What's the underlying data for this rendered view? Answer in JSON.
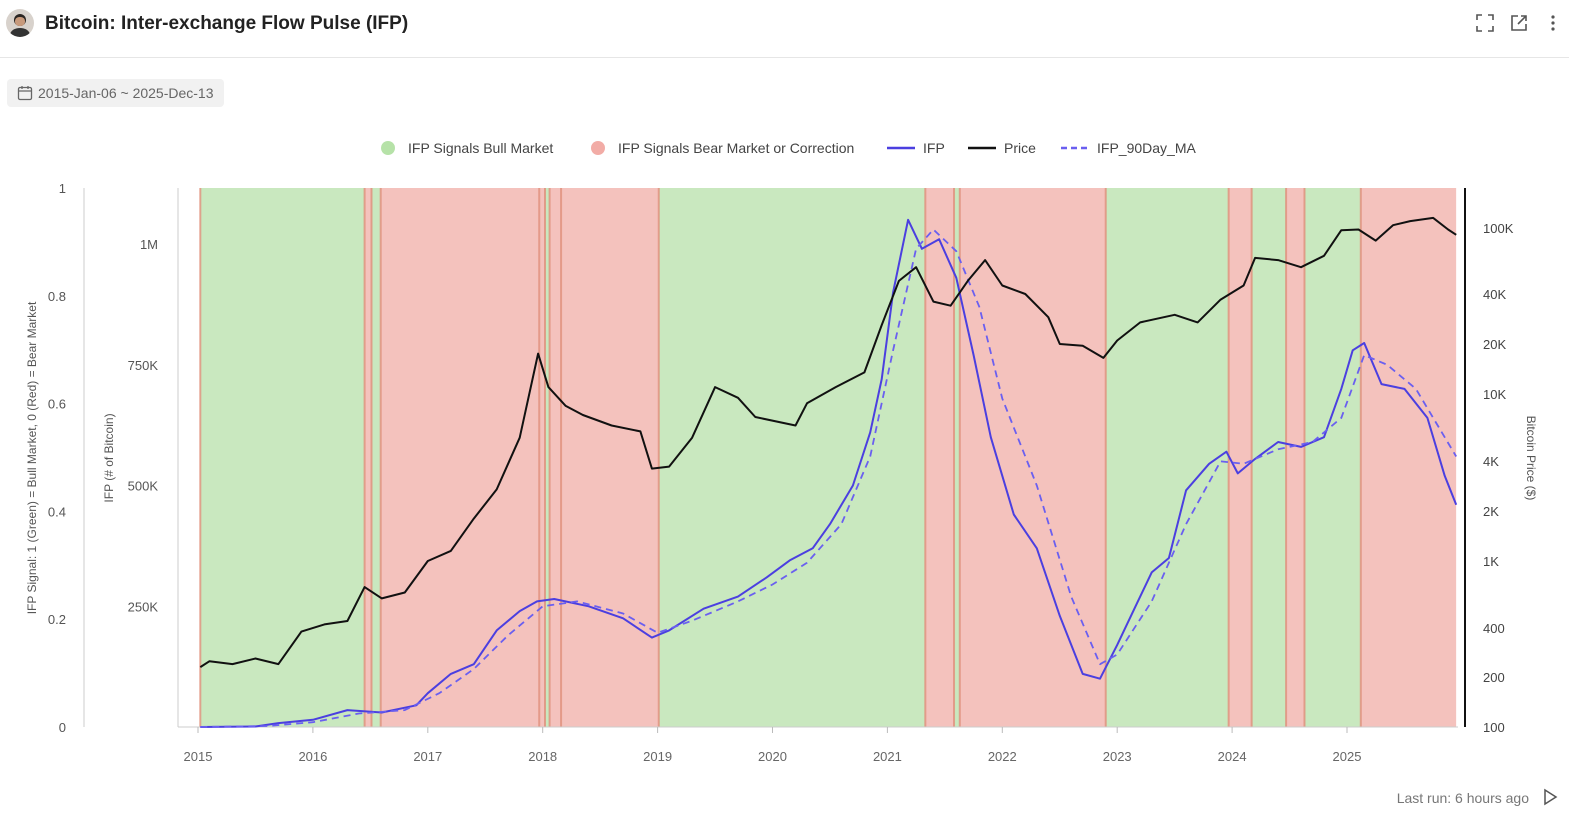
{
  "header": {
    "title": "Bitcoin: Inter-exchange Flow Pulse (IFP)",
    "icons": [
      "expand-icon",
      "open-external-icon",
      "more-vertical-icon"
    ]
  },
  "filters": {
    "date_range": "2015-Jan-06 ~ 2025-Dec-13"
  },
  "footer": {
    "last_run": "Last run: 6 hours ago"
  },
  "colors": {
    "bull": "#c9e8bf",
    "bear": "#f4c2bd",
    "edge": "#e08f7b",
    "ifp": "#4b3fe0",
    "price": "#111111",
    "ma": "#6a5ff0"
  },
  "chart_data": {
    "type": "line",
    "legend": [
      {
        "name": "IFP Signals Bull Market",
        "kind": "dot",
        "color": "#b6e2a8"
      },
      {
        "name": "IFP Signals Bear Market or Correction",
        "kind": "dot",
        "color": "#f2aca6"
      },
      {
        "name": "IFP",
        "kind": "line",
        "color": "#4b3fe0"
      },
      {
        "name": "Price",
        "kind": "line",
        "color": "#111111"
      },
      {
        "name": "IFP_90Day_MA",
        "kind": "dash",
        "color": "#6a5ff0"
      }
    ],
    "x_axis": {
      "ticks": [
        "2015",
        "2016",
        "2017",
        "2018",
        "2019",
        "2020",
        "2021",
        "2022",
        "2023",
        "2024",
        "2025"
      ],
      "range": [
        2015.0,
        2025.95
      ]
    },
    "signal_axis": {
      "label": "IFP Signal: 1 (Green) = Bull Market, 0 (Red) = Bear Market",
      "ticks": [
        "0",
        "0.2",
        "0.4",
        "0.6",
        "0.8",
        "1"
      ],
      "range": [
        0,
        1
      ]
    },
    "ifp_axis": {
      "label": "IFP (# of Bitcoin)",
      "ticks": [
        "250K",
        "500K",
        "750K",
        "1M"
      ],
      "tick_values": [
        250000,
        500000,
        750000,
        1000000
      ],
      "range": [
        0,
        1120000
      ]
    },
    "price_axis": {
      "label": "Bitcoin Price ($)",
      "scale": "log",
      "ticks": [
        "100",
        "200",
        "400",
        "1K",
        "2K",
        "4K",
        "10K",
        "20K",
        "40K",
        "100K"
      ],
      "tick_values": [
        100,
        200,
        400,
        1000,
        2000,
        4000,
        10000,
        20000,
        40000,
        100000
      ],
      "range": [
        100,
        160000
      ]
    },
    "regimes": [
      {
        "start": 2015.02,
        "end": 2016.45,
        "signal": 1
      },
      {
        "start": 2016.45,
        "end": 2016.51,
        "signal": 0
      },
      {
        "start": 2016.51,
        "end": 2016.59,
        "signal": 1
      },
      {
        "start": 2016.59,
        "end": 2017.97,
        "signal": 0
      },
      {
        "start": 2017.97,
        "end": 2018.02,
        "signal": 0
      },
      {
        "start": 2018.02,
        "end": 2018.06,
        "signal": 1
      },
      {
        "start": 2018.06,
        "end": 2018.16,
        "signal": 0
      },
      {
        "start": 2018.16,
        "end": 2019.01,
        "signal": 0
      },
      {
        "start": 2019.01,
        "end": 2021.33,
        "signal": 1
      },
      {
        "start": 2021.33,
        "end": 2021.58,
        "signal": 0
      },
      {
        "start": 2021.58,
        "end": 2021.63,
        "signal": 1
      },
      {
        "start": 2021.63,
        "end": 2022.9,
        "signal": 0
      },
      {
        "start": 2022.9,
        "end": 2023.97,
        "signal": 1
      },
      {
        "start": 2023.97,
        "end": 2024.17,
        "signal": 0
      },
      {
        "start": 2024.17,
        "end": 2024.47,
        "signal": 1
      },
      {
        "start": 2024.47,
        "end": 2024.63,
        "signal": 0
      },
      {
        "start": 2024.63,
        "end": 2025.12,
        "signal": 1
      },
      {
        "start": 2025.12,
        "end": 2025.95,
        "signal": 0
      }
    ],
    "series": [
      {
        "name": "IFP",
        "axis": "ifp",
        "points": [
          [
            2015.02,
            0
          ],
          [
            2015.5,
            1000
          ],
          [
            2015.7,
            8000
          ],
          [
            2016.0,
            15000
          ],
          [
            2016.3,
            35000
          ],
          [
            2016.6,
            30000
          ],
          [
            2016.9,
            45000
          ],
          [
            2017.0,
            70000
          ],
          [
            2017.2,
            110000
          ],
          [
            2017.4,
            130000
          ],
          [
            2017.6,
            200000
          ],
          [
            2017.8,
            240000
          ],
          [
            2017.95,
            260000
          ],
          [
            2018.1,
            265000
          ],
          [
            2018.4,
            250000
          ],
          [
            2018.7,
            225000
          ],
          [
            2018.95,
            185000
          ],
          [
            2019.1,
            200000
          ],
          [
            2019.4,
            245000
          ],
          [
            2019.7,
            270000
          ],
          [
            2019.95,
            310000
          ],
          [
            2020.15,
            345000
          ],
          [
            2020.35,
            370000
          ],
          [
            2020.5,
            420000
          ],
          [
            2020.7,
            500000
          ],
          [
            2020.85,
            610000
          ],
          [
            2020.95,
            720000
          ],
          [
            2021.05,
            900000
          ],
          [
            2021.18,
            1050000
          ],
          [
            2021.3,
            990000
          ],
          [
            2021.45,
            1010000
          ],
          [
            2021.6,
            930000
          ],
          [
            2021.75,
            770000
          ],
          [
            2021.9,
            600000
          ],
          [
            2022.1,
            440000
          ],
          [
            2022.3,
            370000
          ],
          [
            2022.5,
            230000
          ],
          [
            2022.7,
            110000
          ],
          [
            2022.85,
            100000
          ],
          [
            2023.0,
            170000
          ],
          [
            2023.15,
            245000
          ],
          [
            2023.3,
            320000
          ],
          [
            2023.45,
            350000
          ],
          [
            2023.6,
            490000
          ],
          [
            2023.8,
            545000
          ],
          [
            2023.95,
            570000
          ],
          [
            2024.05,
            525000
          ],
          [
            2024.2,
            555000
          ],
          [
            2024.4,
            590000
          ],
          [
            2024.6,
            580000
          ],
          [
            2024.8,
            600000
          ],
          [
            2024.95,
            700000
          ],
          [
            2025.05,
            780000
          ],
          [
            2025.15,
            795000
          ],
          [
            2025.3,
            710000
          ],
          [
            2025.5,
            700000
          ],
          [
            2025.7,
            640000
          ],
          [
            2025.85,
            520000
          ],
          [
            2025.95,
            460000
          ]
        ]
      },
      {
        "name": "IFP_90Day_MA",
        "axis": "ifp",
        "points": [
          [
            2015.02,
            0
          ],
          [
            2015.6,
            2000
          ],
          [
            2016.0,
            10000
          ],
          [
            2016.4,
            28000
          ],
          [
            2016.8,
            35000
          ],
          [
            2017.1,
            70000
          ],
          [
            2017.4,
            120000
          ],
          [
            2017.7,
            190000
          ],
          [
            2018.0,
            250000
          ],
          [
            2018.3,
            260000
          ],
          [
            2018.7,
            235000
          ],
          [
            2019.0,
            195000
          ],
          [
            2019.3,
            220000
          ],
          [
            2019.7,
            260000
          ],
          [
            2020.0,
            295000
          ],
          [
            2020.3,
            340000
          ],
          [
            2020.6,
            420000
          ],
          [
            2020.85,
            560000
          ],
          [
            2021.05,
            780000
          ],
          [
            2021.25,
            990000
          ],
          [
            2021.4,
            1030000
          ],
          [
            2021.6,
            985000
          ],
          [
            2021.8,
            870000
          ],
          [
            2022.0,
            680000
          ],
          [
            2022.3,
            500000
          ],
          [
            2022.6,
            270000
          ],
          [
            2022.85,
            130000
          ],
          [
            2023.0,
            150000
          ],
          [
            2023.3,
            260000
          ],
          [
            2023.6,
            420000
          ],
          [
            2023.9,
            550000
          ],
          [
            2024.1,
            545000
          ],
          [
            2024.4,
            575000
          ],
          [
            2024.7,
            590000
          ],
          [
            2024.95,
            640000
          ],
          [
            2025.15,
            770000
          ],
          [
            2025.35,
            750000
          ],
          [
            2025.6,
            700000
          ],
          [
            2025.8,
            620000
          ],
          [
            2025.95,
            560000
          ]
        ]
      },
      {
        "name": "Price",
        "axis": "price",
        "points": [
          [
            2015.02,
            230
          ],
          [
            2015.1,
            250
          ],
          [
            2015.3,
            240
          ],
          [
            2015.5,
            260
          ],
          [
            2015.7,
            240
          ],
          [
            2015.9,
            380
          ],
          [
            2016.1,
            420
          ],
          [
            2016.3,
            440
          ],
          [
            2016.45,
            700
          ],
          [
            2016.6,
            600
          ],
          [
            2016.8,
            650
          ],
          [
            2017.0,
            1000
          ],
          [
            2017.2,
            1150
          ],
          [
            2017.4,
            1800
          ],
          [
            2017.6,
            2700
          ],
          [
            2017.8,
            5500
          ],
          [
            2017.96,
            17500
          ],
          [
            2018.05,
            11000
          ],
          [
            2018.2,
            8500
          ],
          [
            2018.35,
            7500
          ],
          [
            2018.6,
            6500
          ],
          [
            2018.85,
            6000
          ],
          [
            2018.95,
            3600
          ],
          [
            2019.1,
            3700
          ],
          [
            2019.3,
            5500
          ],
          [
            2019.5,
            11000
          ],
          [
            2019.7,
            9500
          ],
          [
            2019.85,
            7300
          ],
          [
            2020.2,
            6500
          ],
          [
            2020.3,
            8800
          ],
          [
            2020.55,
            11000
          ],
          [
            2020.8,
            13500
          ],
          [
            2020.95,
            26000
          ],
          [
            2021.1,
            48000
          ],
          [
            2021.25,
            58000
          ],
          [
            2021.4,
            36000
          ],
          [
            2021.55,
            34000
          ],
          [
            2021.7,
            48000
          ],
          [
            2021.85,
            64000
          ],
          [
            2022.0,
            45000
          ],
          [
            2022.2,
            40000
          ],
          [
            2022.4,
            29000
          ],
          [
            2022.5,
            20000
          ],
          [
            2022.7,
            19500
          ],
          [
            2022.88,
            16500
          ],
          [
            2023.0,
            21000
          ],
          [
            2023.2,
            27000
          ],
          [
            2023.5,
            30000
          ],
          [
            2023.7,
            27000
          ],
          [
            2023.9,
            37000
          ],
          [
            2024.1,
            45000
          ],
          [
            2024.2,
            66000
          ],
          [
            2024.4,
            64000
          ],
          [
            2024.6,
            58000
          ],
          [
            2024.8,
            68000
          ],
          [
            2024.95,
            97000
          ],
          [
            2025.1,
            98000
          ],
          [
            2025.25,
            84000
          ],
          [
            2025.4,
            104000
          ],
          [
            2025.55,
            110000
          ],
          [
            2025.75,
            115000
          ],
          [
            2025.88,
            98000
          ],
          [
            2025.95,
            91000
          ]
        ]
      }
    ]
  }
}
